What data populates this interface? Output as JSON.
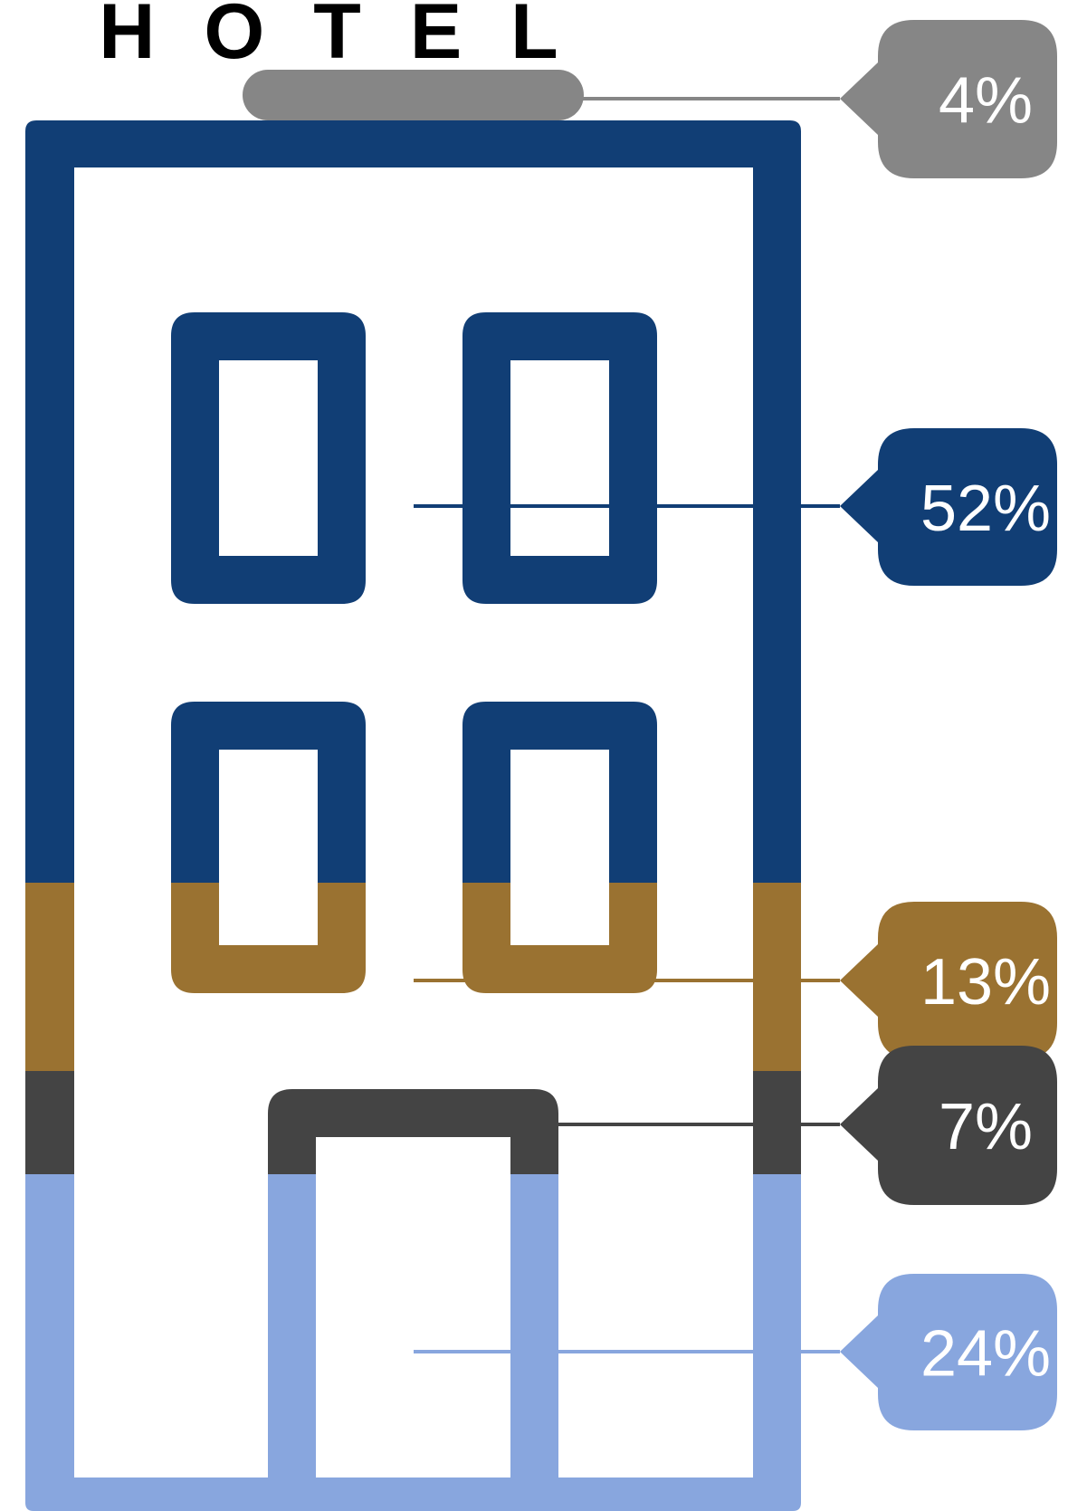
{
  "title": "HOTEL",
  "colors": {
    "sign": "#868686",
    "upper": "#113e75",
    "middle": "#9a7231",
    "door": "#444444",
    "lower": "#88a6de",
    "background": "#ffffff"
  },
  "chart_data": {
    "type": "pictorial",
    "title": "HOTEL",
    "segments": [
      {
        "label": "4%",
        "value": 4,
        "color": "#868686",
        "part": "sign"
      },
      {
        "label": "52%",
        "value": 52,
        "color": "#113e75",
        "part": "upper floors"
      },
      {
        "label": "13%",
        "value": 13,
        "color": "#9a7231",
        "part": "middle floor"
      },
      {
        "label": "7%",
        "value": 7,
        "color": "#444444",
        "part": "door top"
      },
      {
        "label": "24%",
        "value": 24,
        "color": "#88a6de",
        "part": "ground floor"
      }
    ]
  }
}
